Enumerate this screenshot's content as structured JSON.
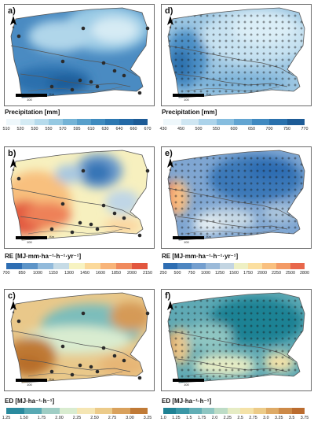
{
  "panels": [
    {
      "id": "a",
      "label": "a)",
      "legend_title": "Precipitation [mm]",
      "ticks": [
        "510",
        "520",
        "530",
        "550",
        "570",
        "595",
        "610",
        "630",
        "640",
        "660",
        "670"
      ],
      "colors": [
        "#eef7fb",
        "#d4ebf4",
        "#b6dbec",
        "#96c9e2",
        "#74b3d6",
        "#579fcb",
        "#3f8bbf",
        "#2c78b2",
        "#2369a6",
        "#1d5b96"
      ],
      "stations": true,
      "crosses": false,
      "scale_value": "100",
      "scale_unit": "Km"
    },
    {
      "id": "d",
      "label": "d)",
      "legend_title": "Precipitation [mm]",
      "ticks": [
        "430",
        "450",
        "500",
        "550",
        "600",
        "650",
        "700",
        "750",
        "770"
      ],
      "colors": [
        "#eef7fb",
        "#cfe6f2",
        "#acd3ea",
        "#86bddf",
        "#62a4d1",
        "#4089c0",
        "#2a71ad",
        "#1d5b96"
      ],
      "stations": false,
      "crosses": true,
      "scale_value": "100",
      "scale_unit": "Km"
    },
    {
      "id": "b",
      "label": "b)",
      "legend_title": "RE [MJ·mm·ha⁻¹·h⁻¹·yr⁻¹]",
      "ticks": [
        "700",
        "850",
        "1000",
        "1150",
        "1300",
        "1450",
        "1600",
        "1850",
        "2000",
        "2150"
      ],
      "colors": [
        "#2e6eb3",
        "#5c94c8",
        "#92badb",
        "#c6dbe6",
        "#f7f3c2",
        "#fbd99a",
        "#f8b479",
        "#f08a5d",
        "#e2563e"
      ],
      "stations": true,
      "crosses": false,
      "scale_value": "100",
      "scale_unit": "Km"
    },
    {
      "id": "e",
      "label": "e)",
      "legend_title": "RE [MJ·mm·ha⁻¹·h⁻¹·yr⁻¹]",
      "ticks": [
        "250",
        "500",
        "750",
        "1000",
        "1250",
        "1500",
        "1750",
        "2000",
        "2250",
        "2500",
        "2800"
      ],
      "colors": [
        "#2e6eb3",
        "#4d86c1",
        "#749fcf",
        "#9bbad9",
        "#c3d5e2",
        "#eef0c4",
        "#fbdfa0",
        "#f9c07f",
        "#f39a65",
        "#e8674b"
      ],
      "stations": false,
      "crosses": true,
      "scale_value": "100",
      "scale_unit": "Km"
    },
    {
      "id": "c",
      "label": "c)",
      "legend_title": "ED [MJ·ha⁻¹·h⁻¹]",
      "ticks": [
        "1.25",
        "1.50",
        "1.75",
        "2.00",
        "2.25",
        "2.50",
        "2.75",
        "3.00",
        "3.25"
      ],
      "colors": [
        "#2a8a9e",
        "#58a9b3",
        "#9fcdc4",
        "#d9ecd0",
        "#f5e6b4",
        "#eccb8a",
        "#d9a15c",
        "#c07a36"
      ],
      "stations": true,
      "crosses": false,
      "scale_value": "100",
      "scale_unit": "Km"
    },
    {
      "id": "f",
      "label": "f)",
      "legend_title": "ED [MJ·ha⁻¹·h⁻¹]",
      "ticks": [
        "1.0",
        "1.25",
        "1.5",
        "1.75",
        "2.0",
        "2.25",
        "2.5",
        "2.75",
        "3.0",
        "3.25",
        "3.5",
        "3.75"
      ],
      "colors": [
        "#1f8294",
        "#3a97a6",
        "#62aeb5",
        "#8fc6c2",
        "#bddcc6",
        "#e6ecc4",
        "#f4e2a8",
        "#eccb88",
        "#deaa66",
        "#cd8a48",
        "#bb6c2f"
      ],
      "stations": false,
      "crosses": true,
      "scale_value": "100",
      "scale_unit": "Km"
    }
  ]
}
